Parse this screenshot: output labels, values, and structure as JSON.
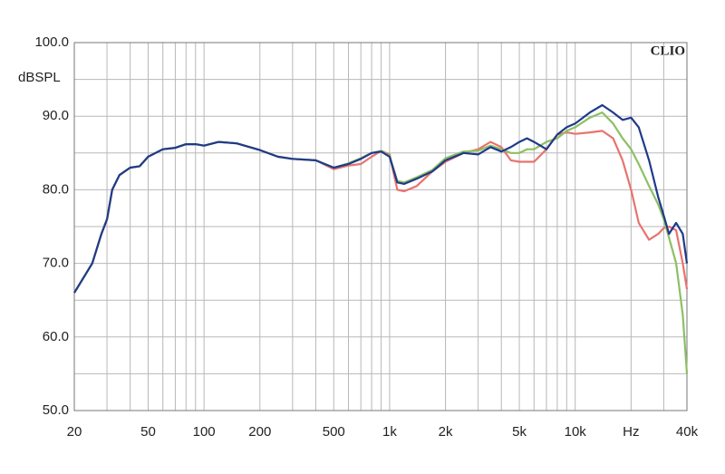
{
  "chart_data": {
    "type": "line",
    "y_label": "dBSPL",
    "brand": "CLIO",
    "xscale": "log",
    "xlim": [
      20,
      40000
    ],
    "ylim": [
      50,
      100
    ],
    "xticks": [
      20,
      50,
      100,
      200,
      500,
      {
        "value": 1000,
        "label": "1k"
      },
      {
        "value": 2000,
        "label": "2k"
      },
      {
        "value": 5000,
        "label": "5k"
      },
      {
        "value": 10000,
        "label": "10k"
      },
      {
        "value": 20000,
        "label": "Hz"
      },
      {
        "value": 40000,
        "label": "40k"
      }
    ],
    "yticks": [
      {
        "value": 50,
        "label": "50.0"
      },
      {
        "value": 60,
        "label": "60.0"
      },
      {
        "value": 70,
        "label": "70.0"
      },
      {
        "value": 80,
        "label": "80.0"
      },
      {
        "value": 90,
        "label": "90.0"
      },
      {
        "value": 100,
        "label": "100.0"
      }
    ],
    "xgrid": [
      30,
      40,
      60,
      70,
      80,
      90,
      300,
      400,
      600,
      700,
      800,
      900,
      3000,
      4000,
      6000,
      7000,
      8000,
      9000,
      30000
    ],
    "ygrid": [
      55,
      65,
      75,
      85,
      95
    ],
    "x": [
      20,
      25,
      28,
      30,
      32,
      35,
      40,
      45,
      50,
      60,
      70,
      80,
      90,
      100,
      120,
      150,
      200,
      250,
      300,
      400,
      500,
      600,
      700,
      800,
      900,
      1000,
      1100,
      1200,
      1400,
      1700,
      2000,
      2500,
      3000,
      3500,
      4000,
      4500,
      5000,
      5500,
      6000,
      7000,
      8000,
      9000,
      10000,
      12000,
      14000,
      16000,
      18000,
      20000,
      22000,
      25000,
      28000,
      30000,
      32000,
      35000,
      38000,
      40000
    ],
    "series": [
      {
        "color": "#e8736f",
        "values": [
          66,
          70,
          74,
          76,
          80,
          82,
          83,
          83.2,
          84.5,
          85.5,
          85.7,
          86.2,
          86.2,
          86,
          86.5,
          86.3,
          85.4,
          84.5,
          84.2,
          84,
          82.8,
          83.3,
          83.5,
          84.5,
          85.3,
          84.8,
          80,
          79.8,
          80.5,
          82.5,
          83.8,
          85,
          85.5,
          86.5,
          85.8,
          84,
          83.8,
          83.8,
          83.8,
          85.5,
          87.5,
          87.8,
          87.6,
          87.8,
          88,
          87,
          84,
          80,
          75.5,
          73.2,
          74,
          74.8,
          75,
          74.5,
          70,
          66.5
        ]
      },
      {
        "color": "#8cc063",
        "values": [
          66,
          70,
          74,
          76,
          80,
          82,
          83,
          83.2,
          84.5,
          85.5,
          85.7,
          86.2,
          86.2,
          86,
          86.5,
          86.3,
          85.4,
          84.5,
          84.2,
          84,
          83,
          83.6,
          84.3,
          85,
          85.3,
          84.6,
          81.2,
          81,
          81.7,
          82.7,
          84.3,
          85.2,
          85.3,
          86,
          85.5,
          85,
          85,
          85.5,
          85.5,
          86.5,
          87,
          88,
          88.5,
          89.8,
          90.5,
          89,
          87,
          85.5,
          83.5,
          80.5,
          78,
          76,
          73.5,
          70,
          63,
          55
        ]
      },
      {
        "color": "#1f3a8a",
        "values": [
          66,
          70,
          74,
          76,
          80,
          82,
          83,
          83.2,
          84.5,
          85.5,
          85.7,
          86.2,
          86.2,
          86,
          86.5,
          86.3,
          85.4,
          84.5,
          84.2,
          84,
          83,
          83.5,
          84.2,
          85,
          85.2,
          84.5,
          81,
          80.8,
          81.5,
          82.5,
          84,
          85,
          84.8,
          85.8,
          85.2,
          85.8,
          86.5,
          87,
          86.5,
          85.5,
          87.5,
          88.5,
          89,
          90.5,
          91.5,
          90.5,
          89.5,
          89.8,
          88.5,
          84,
          79,
          76.5,
          74,
          75.5,
          74,
          70
        ]
      }
    ]
  }
}
